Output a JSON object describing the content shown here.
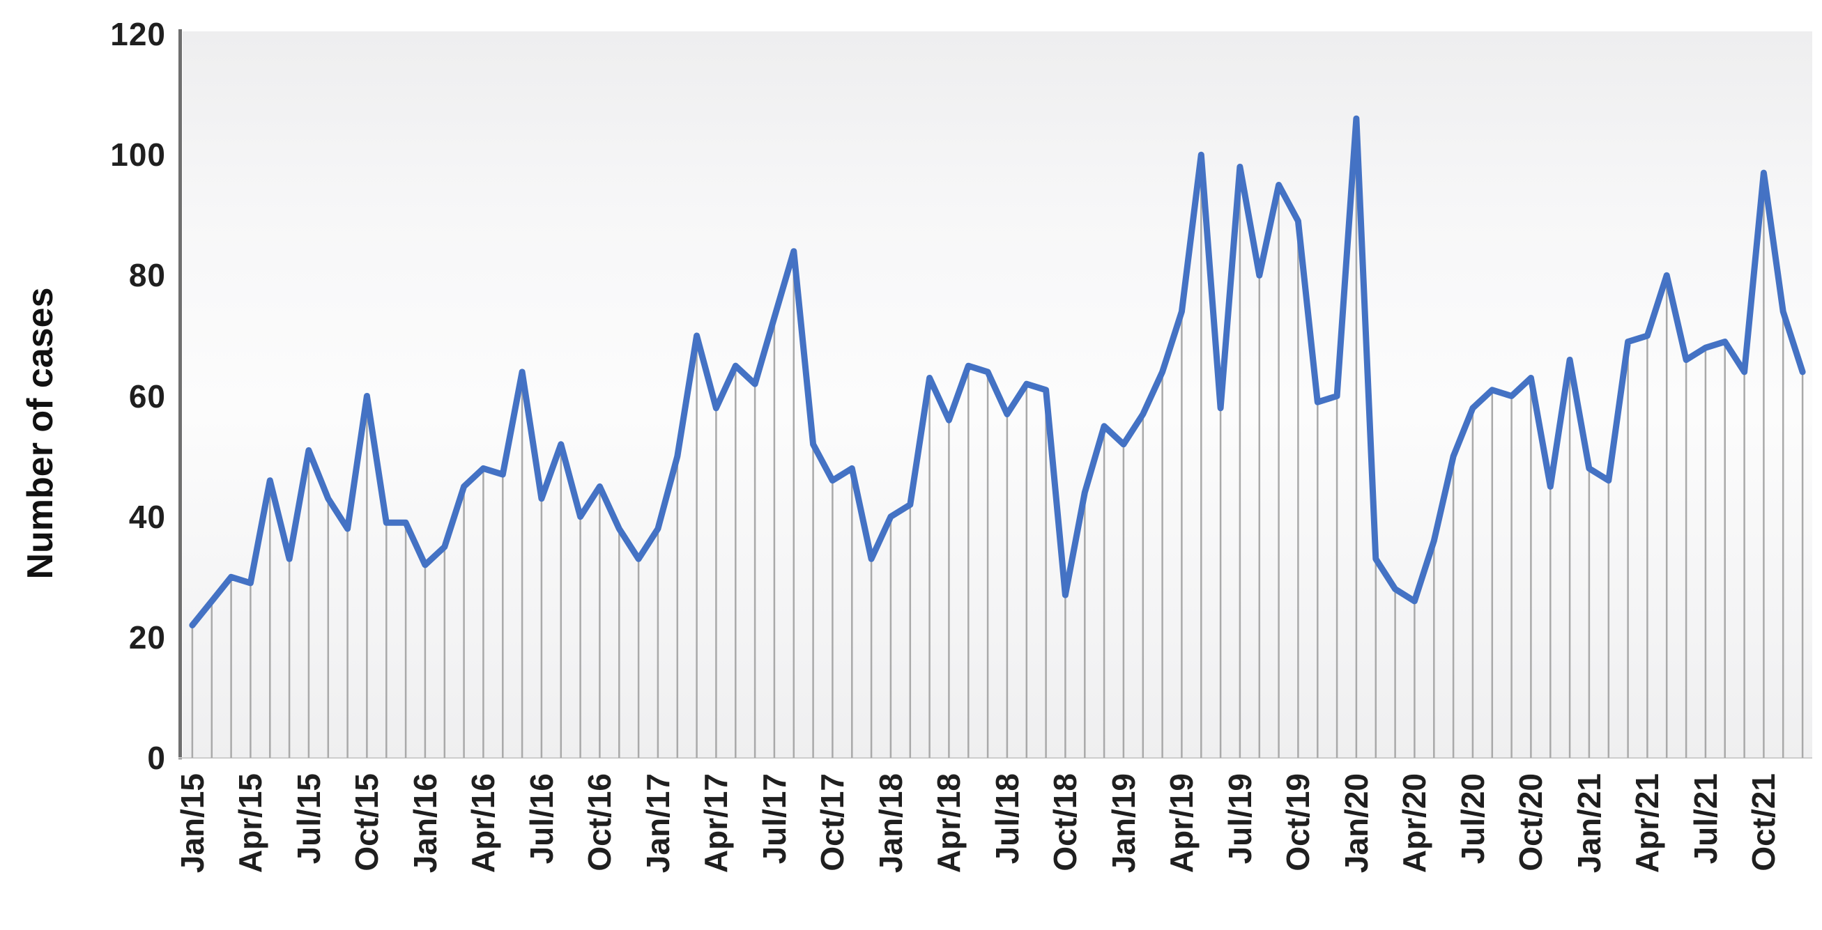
{
  "chart_data": {
    "type": "line",
    "title": "",
    "xlabel": "",
    "ylabel": "Number of cases",
    "ylim": [
      0,
      120
    ],
    "yticks": [
      0,
      20,
      40,
      60,
      80,
      100,
      120
    ],
    "x_tick_step": 3,
    "grid": "off",
    "legend": "none",
    "line_color": "#4472C4",
    "dropline_color": "#a9a9a9",
    "axis_line_color": "#6f6f6f",
    "text_color": "#1f1f1f",
    "categories": [
      "Jan/15",
      "Feb/15",
      "Mar/15",
      "Apr/15",
      "May/15",
      "Jun/15",
      "Jul/15",
      "Aug/15",
      "Sep/15",
      "Oct/15",
      "Nov/15",
      "Dec/15",
      "Jan/16",
      "Feb/16",
      "Mar/16",
      "Apr/16",
      "May/16",
      "Jun/16",
      "Jul/16",
      "Aug/16",
      "Sep/16",
      "Oct/16",
      "Nov/16",
      "Dec/16",
      "Jan/17",
      "Feb/17",
      "Mar/17",
      "Apr/17",
      "May/17",
      "Jun/17",
      "Jul/17",
      "Aug/17",
      "Sep/17",
      "Oct/17",
      "Nov/17",
      "Dec/17",
      "Jan/18",
      "Feb/18",
      "Mar/18",
      "Apr/18",
      "May/18",
      "Jun/18",
      "Jul/18",
      "Aug/18",
      "Sep/18",
      "Oct/18",
      "Nov/18",
      "Dec/18",
      "Jan/19",
      "Feb/19",
      "Mar/19",
      "Apr/19",
      "May/19",
      "Jun/19",
      "Jul/19",
      "Aug/19",
      "Sep/19",
      "Oct/19",
      "Nov/19",
      "Dec/19",
      "Jan/20",
      "Feb/20",
      "Mar/20",
      "Apr/20",
      "May/20",
      "Jun/20",
      "Jul/20",
      "Aug/20",
      "Sep/20",
      "Oct/20",
      "Nov/20",
      "Dec/20",
      "Jan/21",
      "Feb/21",
      "Mar/21",
      "Apr/21",
      "May/21",
      "Jun/21",
      "Jul/21",
      "Aug/21",
      "Sep/21",
      "Oct/21",
      "Nov/21",
      "Dec/21"
    ],
    "values": [
      22,
      26,
      30,
      29,
      46,
      33,
      51,
      43,
      38,
      60,
      39,
      39,
      32,
      35,
      45,
      48,
      47,
      64,
      43,
      52,
      40,
      45,
      38,
      33,
      38,
      50,
      70,
      58,
      65,
      62,
      73,
      84,
      52,
      46,
      48,
      33,
      40,
      42,
      63,
      56,
      65,
      64,
      57,
      62,
      61,
      27,
      44,
      55,
      52,
      57,
      64,
      74,
      100,
      58,
      98,
      80,
      95,
      89,
      59,
      60,
      106,
      33,
      28,
      26,
      36,
      50,
      58,
      61,
      60,
      63,
      45,
      66,
      48,
      46,
      69,
      70,
      80,
      66,
      68,
      69,
      64,
      97,
      74,
      64
    ]
  }
}
